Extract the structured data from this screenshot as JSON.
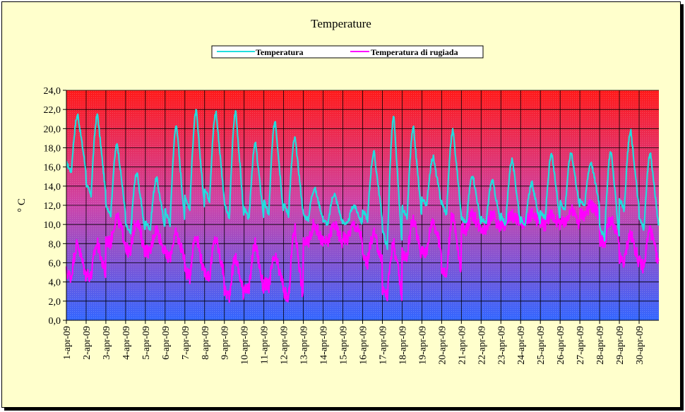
{
  "chart_data": {
    "type": "line",
    "title": "Temperature",
    "ylabel": "° C",
    "xlabel": "",
    "ylim": [
      0,
      24
    ],
    "y_ticks": [
      "0,0",
      "2,0",
      "4,0",
      "6,0",
      "8,0",
      "10,0",
      "12,0",
      "14,0",
      "16,0",
      "18,0",
      "20,0",
      "22,0",
      "24,0"
    ],
    "categories": [
      "1-apr-09",
      "2-apr-09",
      "3-apr-09",
      "4-apr-09",
      "5-apr-09",
      "6-apr-09",
      "7-apr-09",
      "8-apr-09",
      "9-apr-09",
      "10-apr-09",
      "11-apr-09",
      "12-apr-09",
      "13-apr-09",
      "14-apr-09",
      "15-apr-09",
      "16-apr-09",
      "17-apr-09",
      "18-apr-09",
      "19-apr-09",
      "20-apr-09",
      "21-apr-09",
      "22-apr-09",
      "23-apr-09",
      "24-apr-09",
      "25-apr-09",
      "26-apr-09",
      "27-apr-09",
      "28-apr-09",
      "29-apr-09",
      "30-apr-09"
    ],
    "grid": true,
    "legend_position": "top",
    "background": "vertical gradient red (top) to blue (bottom)",
    "colors": {
      "temp": "#22dddd",
      "dew": "#ff00ff",
      "frame": "#ffffcc"
    },
    "series": [
      {
        "name": "Temperatura",
        "daily_min": [
          15.5,
          13.0,
          11.0,
          9.0,
          9.5,
          10.0,
          11.5,
          12.5,
          10.5,
          10.5,
          11.0,
          11.0,
          10.5,
          10.0,
          10.0,
          10.5,
          7.5,
          10.5,
          12.0,
          11.0,
          10.0,
          10.0,
          10.0,
          10.0,
          10.5,
          11.5,
          12.0,
          8.5,
          11.5,
          9.5
        ],
        "daily_max": [
          21.4,
          21.4,
          18.4,
          15.4,
          14.8,
          20.4,
          21.8,
          21.7,
          21.8,
          18.4,
          20.8,
          19.0,
          13.8,
          13.2,
          12.0,
          17.5,
          21.2,
          20.0,
          17.0,
          19.8,
          15.2,
          14.6,
          16.8,
          14.3,
          17.3,
          17.5,
          16.5,
          17.7,
          19.7,
          17.4
        ]
      },
      {
        "name": "Temperatura di rugiada",
        "daily_min": [
          4.5,
          4.5,
          8.0,
          7.0,
          7.0,
          6.5,
          4.5,
          4.5,
          2.5,
          3.0,
          3.5,
          2.0,
          8.0,
          8.0,
          8.5,
          6.0,
          2.5,
          6.5,
          7.0,
          4.5,
          9.5,
          9.5,
          10.0,
          10.0,
          10.0,
          10.0,
          11.0,
          8.0,
          6.0,
          5.5
        ],
        "daily_max": [
          8.0,
          8.0,
          10.8,
          10.5,
          9.5,
          9.0,
          9.0,
          8.5,
          6.5,
          8.0,
          6.5,
          9.5,
          10.0,
          10.0,
          10.0,
          9.0,
          8.0,
          10.5,
          10.5,
          11.0,
          11.0,
          11.0,
          11.0,
          11.0,
          11.0,
          11.5,
          12.0,
          10.5,
          9.0,
          9.5
        ]
      }
    ]
  }
}
